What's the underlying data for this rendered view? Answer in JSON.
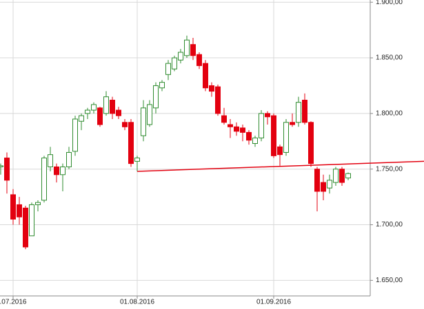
{
  "chart_data": {
    "type": "candlestick",
    "categories": [
      null,
      null,
      ".07.2016",
      null,
      null,
      null,
      null,
      null,
      null,
      null,
      null,
      null,
      null,
      null,
      null,
      null,
      null,
      null,
      null,
      null,
      null,
      null,
      "01.08.2016",
      null,
      null,
      null,
      null,
      null,
      null,
      null,
      null,
      null,
      null,
      null,
      null,
      null,
      null,
      null,
      null,
      null,
      null,
      null,
      null,
      null,
      "01.09.2016",
      null,
      null,
      null,
      null,
      null,
      null,
      null,
      null,
      null,
      null,
      null,
      null
    ],
    "open": [
      1752,
      1760,
      1727,
      1718,
      1715,
      1690,
      1718,
      1722,
      1752,
      1752,
      1745,
      1752,
      1766,
      1793,
      1800,
      1803,
      1805,
      1800,
      1812,
      1803,
      1792,
      1792,
      1757,
      1780,
      1790,
      1805,
      1823,
      1835,
      1840,
      1848,
      1852,
      1862,
      1853,
      1845,
      1825,
      1824,
      1798,
      1790,
      1788,
      1787,
      1783,
      1773,
      1778,
      1800,
      1798,
      1770,
      1765,
      1792,
      1792,
      1812,
      1792,
      1750,
      1738,
      1733,
      1738,
      1750,
      1742
    ],
    "high": [
      1755,
      1765,
      1732,
      1725,
      1717,
      1720,
      1722,
      1762,
      1770,
      1755,
      1755,
      1770,
      1798,
      1800,
      1805,
      1810,
      1806,
      1820,
      1815,
      1806,
      1795,
      1795,
      1762,
      1812,
      1812,
      1828,
      1830,
      1848,
      1852,
      1858,
      1870,
      1868,
      1855,
      1848,
      1828,
      1826,
      1805,
      1795,
      1792,
      1790,
      1785,
      1780,
      1803,
      1802,
      1800,
      1772,
      1795,
      1800,
      1815,
      1818,
      1793,
      1752,
      1745,
      1745,
      1752,
      1752,
      1747
    ],
    "low": [
      1745,
      1728,
      1700,
      1700,
      1678,
      1690,
      1712,
      1720,
      1748,
      1738,
      1730,
      1750,
      1762,
      1785,
      1795,
      1800,
      1788,
      1798,
      1795,
      1795,
      1785,
      1752,
      1748,
      1775,
      1788,
      1800,
      1820,
      1830,
      1838,
      1845,
      1850,
      1848,
      1840,
      1820,
      1815,
      1798,
      1790,
      1778,
      1780,
      1775,
      1772,
      1770,
      1775,
      1790,
      1760,
      1753,
      1762,
      1788,
      1788,
      1790,
      1752,
      1712,
      1722,
      1728,
      1735,
      1735,
      1740
    ],
    "close": [
      1753,
      1740,
      1705,
      1707,
      1680,
      1718,
      1720,
      1760,
      1763,
      1745,
      1752,
      1765,
      1795,
      1798,
      1803,
      1808,
      1790,
      1815,
      1800,
      1798,
      1788,
      1755,
      1760,
      1805,
      1808,
      1825,
      1828,
      1845,
      1850,
      1855,
      1866,
      1852,
      1843,
      1823,
      1820,
      1800,
      1792,
      1788,
      1784,
      1783,
      1776,
      1778,
      1800,
      1797,
      1762,
      1763,
      1792,
      1790,
      1810,
      1792,
      1755,
      1730,
      1730,
      1740,
      1750,
      1738,
      1746
    ],
    "up_color": "#2e8b2e",
    "down_color": "#e3000f",
    "ylim": [
      1636,
      1902
    ],
    "yticks": [
      {
        "value": 1650,
        "label": "1.650,00"
      },
      {
        "value": 1700,
        "label": "1.700,00"
      },
      {
        "value": 1750,
        "label": "1.750,00"
      },
      {
        "value": 1800,
        "label": "1.800,00"
      },
      {
        "value": 1850,
        "label": "1.850,00"
      },
      {
        "value": 1900,
        "label": "1.900,00"
      }
    ],
    "grid": true,
    "trend_line": {
      "start": 1748,
      "end": 1757,
      "color": "#e3000f"
    }
  }
}
